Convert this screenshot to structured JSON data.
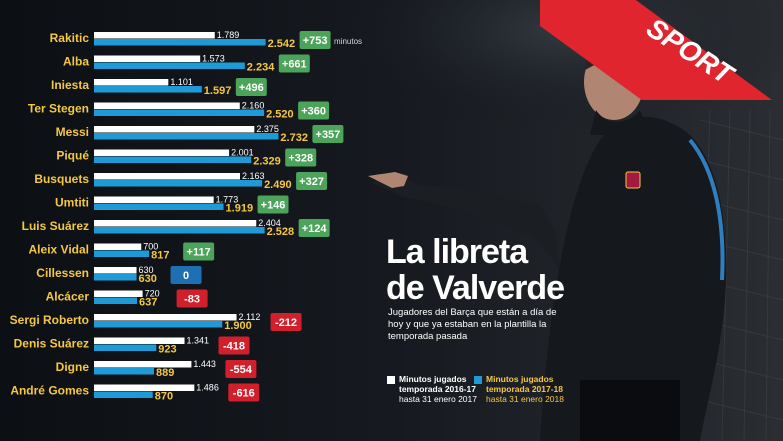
{
  "title_line1": "La libreta",
  "title_line2": "de Valverde",
  "subtitle": "Jugadores del Barça que están a día de hoy y que ya estaban en la plantilla la temporada pasada",
  "unit_label": "minutos",
  "logo_text": "SPORT",
  "legend": {
    "season1": {
      "title": "Minutos jugados",
      "line2": "temporada 2016-17",
      "line3": "hasta 31 enero 2017"
    },
    "season2": {
      "title": "Minutos jugados",
      "line2": "temporada 2017-18",
      "line3": "hasta 31 enero 2018"
    }
  },
  "colors": {
    "season1_bar": "#ffffff",
    "season2_bar": "#1e9bd7",
    "label_yellow": "#f4c842",
    "positive": "#4ca35a",
    "zero": "#1f6fb3",
    "negative": "#d11f2c",
    "banner": "#e0252e"
  },
  "chart_data": {
    "type": "bar",
    "orientation": "horizontal",
    "categories": [
      "Rakitic",
      "Alba",
      "Iniesta",
      "Ter Stegen",
      "Messi",
      "Piqué",
      "Busquets",
      "Umtiti",
      "Luis Suárez",
      "Aleix Vidal",
      "Cillessen",
      "Alcácer",
      "Sergi Roberto",
      "Denis Suárez",
      "Digne",
      "André Gomes"
    ],
    "series": [
      {
        "name": "Minutos jugados temporada 2016-17 hasta 31 enero 2017",
        "values": [
          1789,
          1573,
          1101,
          2160,
          2375,
          2001,
          2163,
          1773,
          2404,
          700,
          630,
          720,
          2112,
          1341,
          1443,
          1486
        ],
        "labels": [
          "1.789",
          "1.573",
          "1.101",
          "2.160",
          "2.375",
          "2.001",
          "2.163",
          "1.773",
          "2.404",
          "700",
          "630",
          "720",
          "2.112",
          "1.341",
          "1.443",
          "1.486"
        ]
      },
      {
        "name": "Minutos jugados temporada 2017-18 hasta 31 enero 2018",
        "values": [
          2542,
          2234,
          1597,
          2520,
          2732,
          2329,
          2490,
          1919,
          2528,
          817,
          630,
          637,
          1900,
          923,
          889,
          870
        ],
        "labels": [
          "2.542",
          "2.234",
          "1.597",
          "2.520",
          "2.732",
          "2.329",
          "2.490",
          "1.919",
          "2.528",
          "817",
          "630",
          "637",
          "1.900",
          "923",
          "889",
          "870"
        ]
      }
    ],
    "differences": [
      753,
      661,
      496,
      360,
      357,
      328,
      327,
      146,
      124,
      117,
      0,
      -83,
      -212,
      -418,
      -554,
      -616
    ],
    "difference_labels": [
      "+753",
      "+661",
      "+496",
      "+360",
      "+357",
      "+328",
      "+327",
      "+146",
      "+124",
      "+117",
      "0",
      "-83",
      "-212",
      "-418",
      "-554",
      "-616"
    ]
  }
}
